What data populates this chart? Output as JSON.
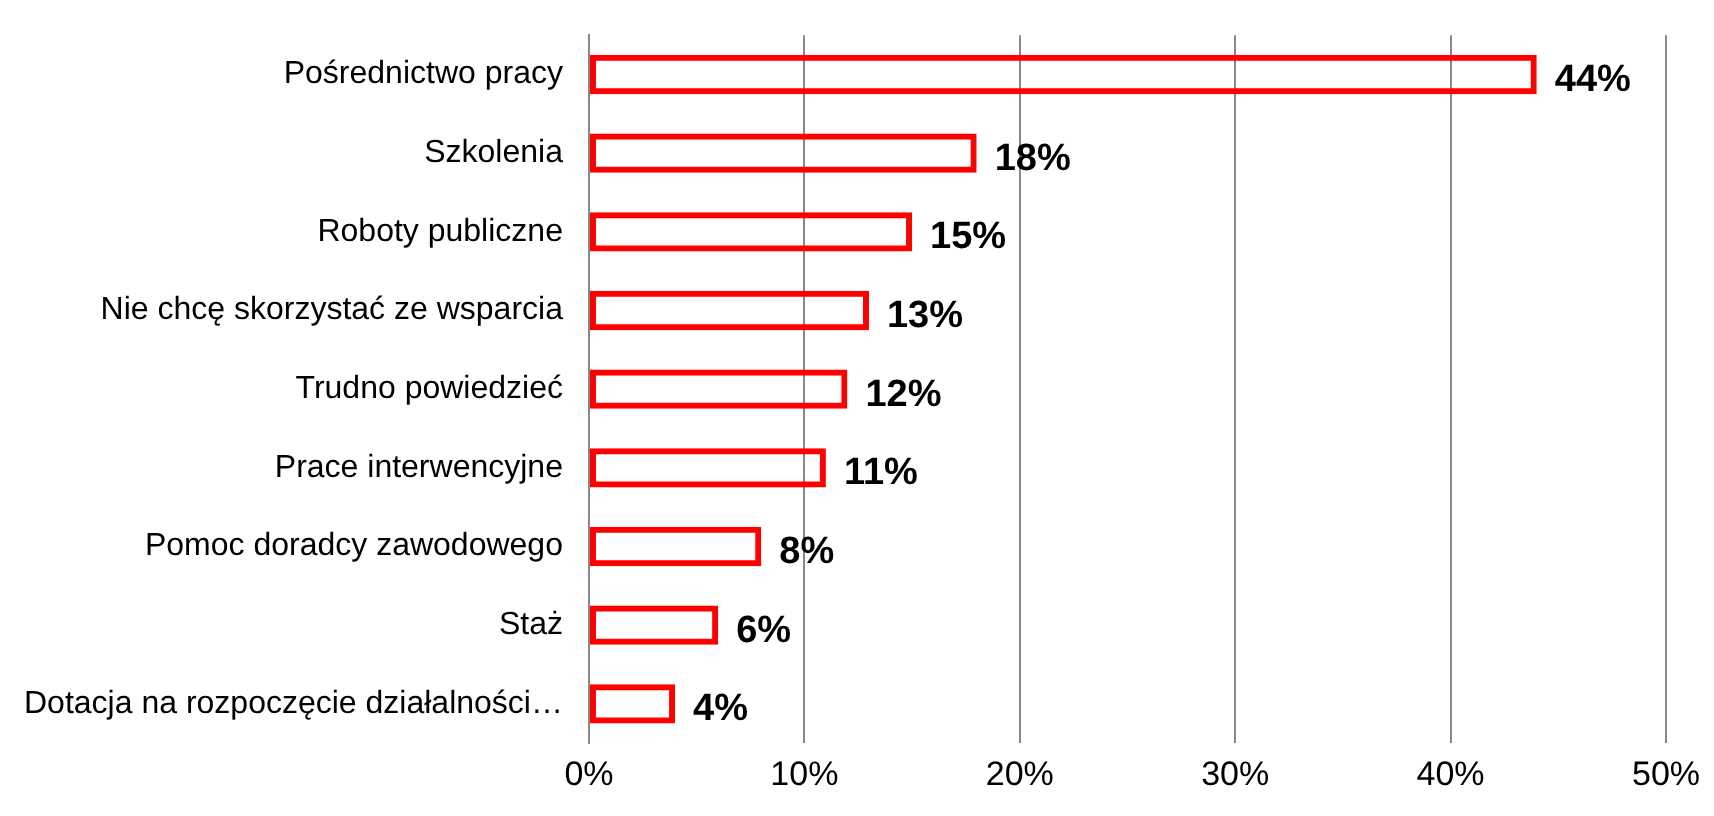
{
  "chart_data": {
    "type": "bar",
    "orientation": "horizontal",
    "categories": [
      "Pośrednictwo pracy",
      "Szkolenia",
      "Roboty publiczne",
      "Nie chcę skorzystać ze wsparcia",
      "Trudno powiedzieć",
      "Prace interwencyjne",
      "Pomoc doradcy zawodowego",
      "Staż",
      "Dotacja na rozpoczęcie działalności…"
    ],
    "values": [
      44,
      18,
      15,
      13,
      12,
      11,
      8,
      6,
      4
    ],
    "value_labels": [
      "44%",
      "18%",
      "15%",
      "13%",
      "12%",
      "11%",
      "8%",
      "6%",
      "4%"
    ],
    "color": "#ff0000",
    "xlim": [
      0,
      50
    ],
    "xticks": [
      {
        "value": 0,
        "label": "0%"
      },
      {
        "value": 10,
        "label": "10%"
      },
      {
        "value": 20,
        "label": "20%"
      },
      {
        "value": 30,
        "label": "30%"
      },
      {
        "value": 40,
        "label": "40%"
      },
      {
        "value": 50,
        "label": "50%"
      }
    ],
    "grid": "x",
    "legend": false
  }
}
